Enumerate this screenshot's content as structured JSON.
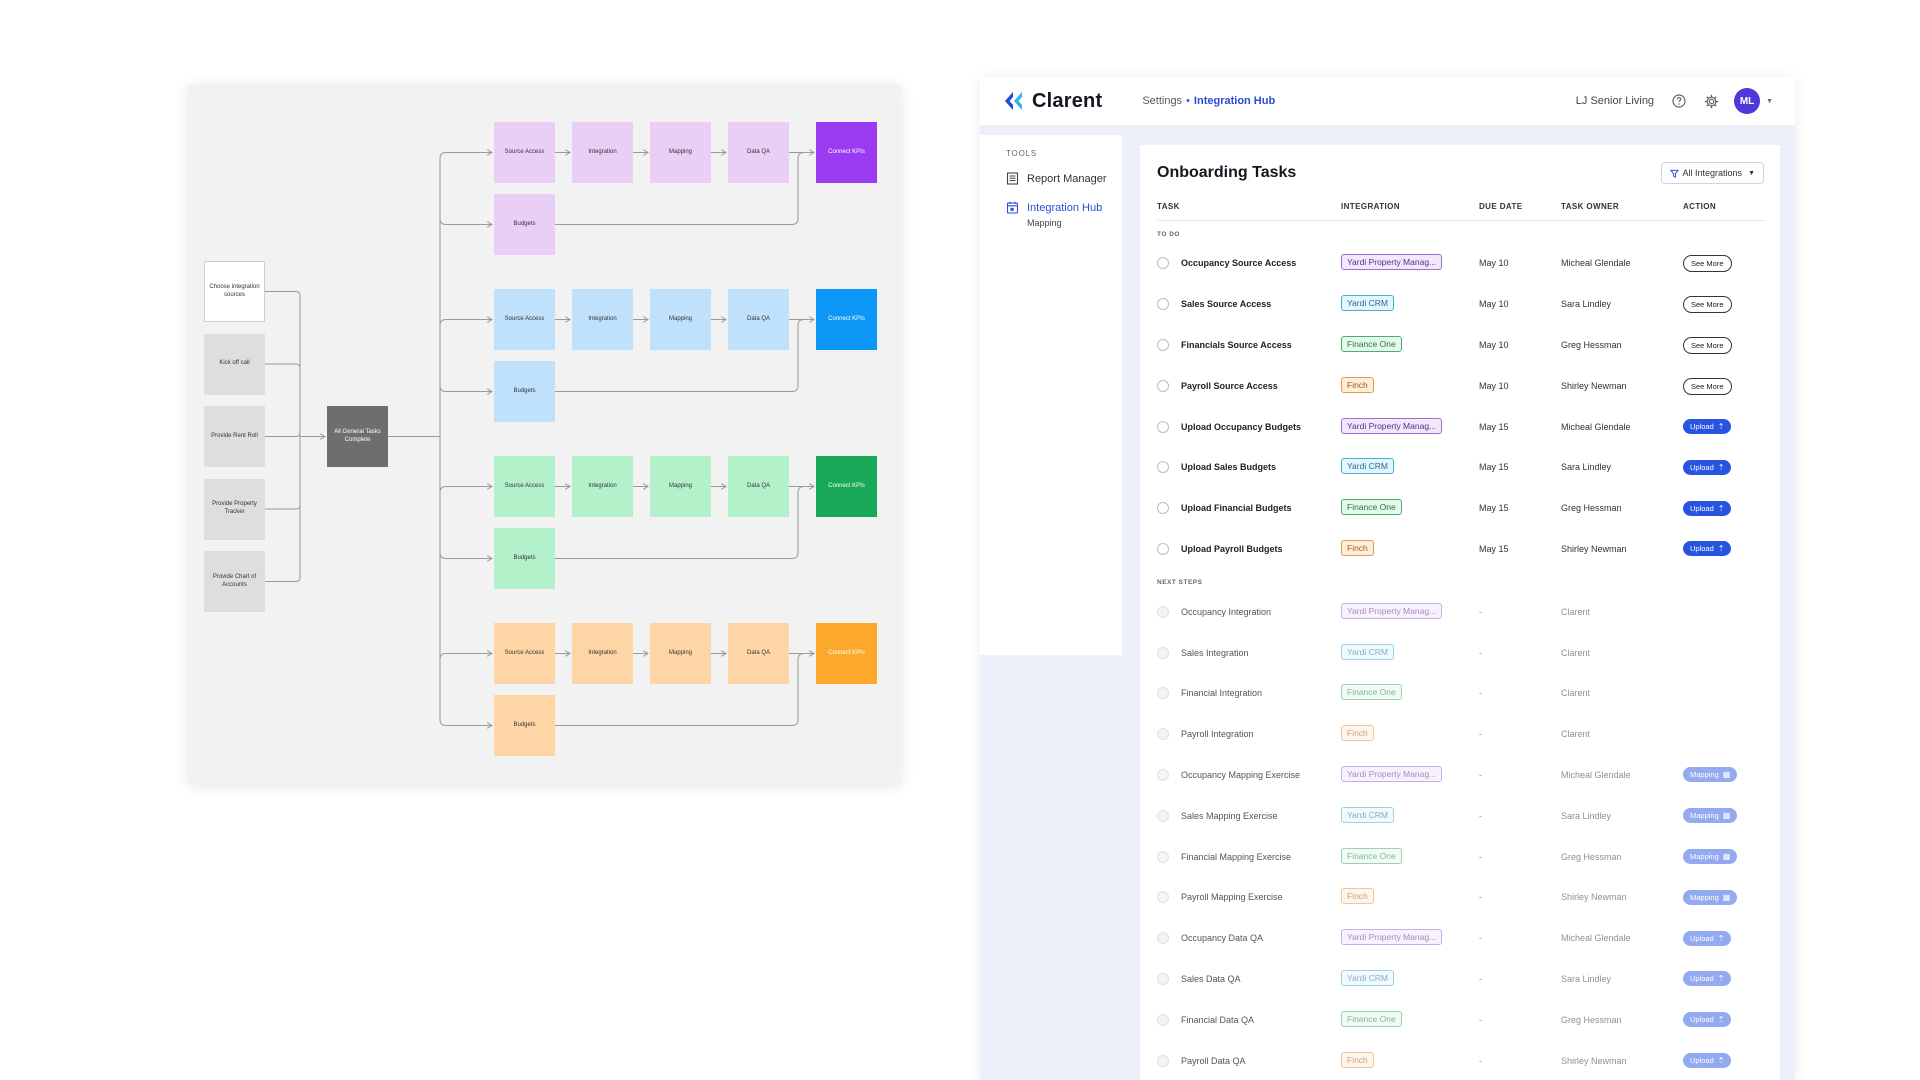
{
  "flow": {
    "start_nodes": [
      {
        "label": "Choose integration sources",
        "style": "white"
      },
      {
        "label": "Kick off call",
        "style": "grey"
      },
      {
        "label": "Provide Rent Roll",
        "style": "grey"
      },
      {
        "label": "Provide Property Tracker",
        "style": "grey"
      },
      {
        "label": "Provide Chart of Accounts",
        "style": "grey"
      }
    ],
    "hub_label": "All General Tasks Complete",
    "lanes": [
      {
        "light": "#e9cff5",
        "solid": "#9a3bf2",
        "steps": [
          "Source Access",
          "Integration",
          "Mapping",
          "Data QA"
        ],
        "end": "Connect KPIs",
        "budget": "Budgets"
      },
      {
        "light": "#bfe1fb",
        "solid": "#0c96f6",
        "steps": [
          "Source Access",
          "Integration",
          "Mapping",
          "Data QA"
        ],
        "end": "Connect KPIs",
        "budget": "Budgets"
      },
      {
        "light": "#b2f1c9",
        "solid": "#17a957",
        "steps": [
          "Source Access",
          "Integration",
          "Mapping",
          "Data QA"
        ],
        "end": "Connect KPIs",
        "budget": "Budgets"
      },
      {
        "light": "#fed6a6",
        "solid": "#fca82a",
        "steps": [
          "Source Access",
          "Integration",
          "Mapping",
          "Data QA"
        ],
        "end": "Connect KPIs",
        "budget": "Budgets"
      }
    ]
  },
  "app": {
    "brand": "Clarent",
    "breadcrumb": {
      "parent": "Settings",
      "separator": "•",
      "current": "Integration Hub"
    },
    "org_name": "LJ Senior Living",
    "avatar_initials": "ML",
    "sidebar": {
      "heading": "TOOLS",
      "items": [
        {
          "label": "Report Manager",
          "icon": "report-icon"
        },
        {
          "label": "Integration Hub",
          "icon": "calendar-icon",
          "sub": "Mapping"
        }
      ]
    },
    "title": "Onboarding Tasks",
    "filter_label": "All Integrations",
    "columns": {
      "task": "TASK",
      "integration": "INTEGRATION",
      "due": "DUE DATE",
      "owner": "TASK OWNER",
      "action": "ACTION"
    },
    "sections": {
      "todo": "TO DO",
      "next": "NEXT STEPS"
    },
    "integration_colors": {
      "Yardi Property Manag...": {
        "bg": "#f3e8fb",
        "border": "#9c6ed6",
        "text": "#5a2a91"
      },
      "Yardi CRM": {
        "bg": "#e4f5fb",
        "border": "#4aaed0",
        "text": "#1b6f8c"
      },
      "Finance One": {
        "bg": "#e6f7ec",
        "border": "#47b06d",
        "text": "#1f7a3f"
      },
      "Finch": {
        "bg": "#fdeedc",
        "border": "#e49a4a",
        "text": "#a3561a"
      }
    },
    "todo_rows": [
      {
        "task": "Occupancy Source Access",
        "integration": "Yardi Property Manag...",
        "due": "May 10",
        "owner": "Micheal Glendale",
        "action": "See More",
        "action_type": "see"
      },
      {
        "task": "Sales Source Access",
        "integration": "Yardi CRM",
        "due": "May 10",
        "owner": "Sara Lindley",
        "action": "See More",
        "action_type": "see"
      },
      {
        "task": "Financials Source Access",
        "integration": "Finance One",
        "due": "May 10",
        "owner": "Greg Hessman",
        "action": "See More",
        "action_type": "see"
      },
      {
        "task": "Payroll Source Access",
        "integration": "Finch",
        "due": "May 10",
        "owner": "Shirley Newman",
        "action": "See More",
        "action_type": "see"
      },
      {
        "task": "Upload Occupancy Budgets",
        "integration": "Yardi Property Manag...",
        "due": "May 15",
        "owner": "Micheal Glendale",
        "action": "Upload",
        "action_type": "upload"
      },
      {
        "task": "Upload Sales Budgets",
        "integration": "Yardi CRM",
        "due": "May 15",
        "owner": "Sara Lindley",
        "action": "Upload",
        "action_type": "upload"
      },
      {
        "task": "Upload Financial Budgets",
        "integration": "Finance One",
        "due": "May 15",
        "owner": "Greg Hessman",
        "action": "Upload",
        "action_type": "upload"
      },
      {
        "task": "Upload Payroll Budgets",
        "integration": "Finch",
        "due": "May 15",
        "owner": "Shirley Newman",
        "action": "Upload",
        "action_type": "upload"
      }
    ],
    "next_rows": [
      {
        "task": "Occupancy Integration",
        "integration": "Yardi Property Manag...",
        "due": "-",
        "owner": "Clarent",
        "action": "",
        "action_type": "none"
      },
      {
        "task": "Sales Integration",
        "integration": "Yardi CRM",
        "due": "-",
        "owner": "Clarent",
        "action": "",
        "action_type": "none"
      },
      {
        "task": "Financial Integration",
        "integration": "Finance One",
        "due": "-",
        "owner": "Clarent",
        "action": "",
        "action_type": "none"
      },
      {
        "task": "Payroll Integration",
        "integration": "Finch",
        "due": "-",
        "owner": "Clarent",
        "action": "",
        "action_type": "none"
      },
      {
        "task": "Occupancy Mapping Exercise",
        "integration": "Yardi Property Manag...",
        "due": "-",
        "owner": "Micheal Glendale",
        "action": "Mapping",
        "action_type": "mapping"
      },
      {
        "task": "Sales Mapping Exercise",
        "integration": "Yardi CRM",
        "due": "-",
        "owner": "Sara Lindley",
        "action": "Mapping",
        "action_type": "mapping"
      },
      {
        "task": "Financial Mapping Exercise",
        "integration": "Finance One",
        "due": "-",
        "owner": "Greg Hessman",
        "action": "Mapping",
        "action_type": "mapping"
      },
      {
        "task": "Payroll Mapping Exercise",
        "integration": "Finch",
        "due": "-",
        "owner": "Shirley Newman",
        "action": "Mapping",
        "action_type": "mapping"
      },
      {
        "task": "Occupancy Data QA",
        "integration": "Yardi Property Manag...",
        "due": "-",
        "owner": "Micheal Glendale",
        "action": "Upload",
        "action_type": "upload"
      },
      {
        "task": "Sales Data QA",
        "integration": "Yardi CRM",
        "due": "-",
        "owner": "Sara Lindley",
        "action": "Upload",
        "action_type": "upload"
      },
      {
        "task": "Financial Data QA",
        "integration": "Finance One",
        "due": "-",
        "owner": "Greg Hessman",
        "action": "Upload",
        "action_type": "upload"
      },
      {
        "task": "Payroll Data QA",
        "integration": "Finch",
        "due": "-",
        "owner": "Shirley Newman",
        "action": "Upload",
        "action_type": "upload"
      }
    ]
  }
}
